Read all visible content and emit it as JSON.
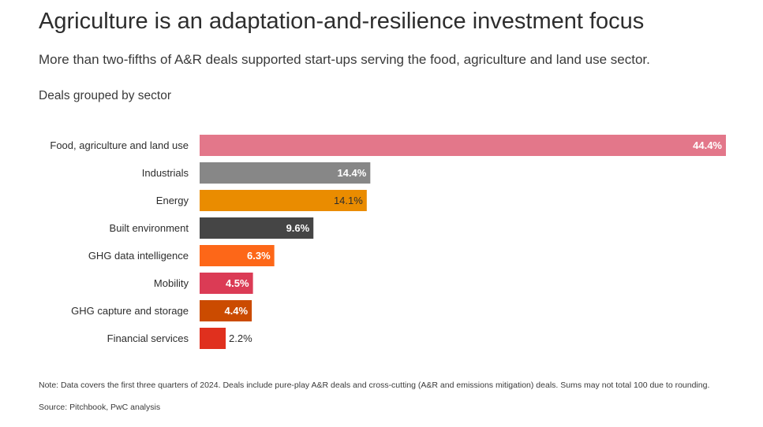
{
  "title": "Agriculture is an adaptation-and-resilience investment focus",
  "subtitle": "More than two-fifths of A&R deals supported start-ups serving the food, agriculture and land use sector.",
  "chart_label": "Deals grouped by sector",
  "note": "Note: Data covers the first three quarters of 2024. Deals include pure-play A&R deals and cross-cutting (A&R and emissions mitigation) deals. Sums may not total 100 due to rounding.",
  "source": "Source: Pitchbook, PwC analysis",
  "chart_data": {
    "type": "bar",
    "orientation": "horizontal",
    "categories": [
      "Food, agriculture and land use",
      "Industrials",
      "Energy",
      "Built environment",
      "GHG data intelligence",
      "Mobility",
      "GHG capture and storage",
      "Financial services"
    ],
    "values": [
      44.4,
      14.4,
      14.1,
      9.6,
      6.3,
      4.5,
      4.4,
      2.2
    ],
    "value_labels": [
      "44.4%",
      "14.4%",
      "14.1%",
      "9.6%",
      "6.3%",
      "4.5%",
      "4.4%",
      "2.2%"
    ],
    "colors": [
      "#e3778a",
      "#878787",
      "#ea8c00",
      "#454545",
      "#fd6718",
      "#db3b55",
      "#cb4b00",
      "#e0301e"
    ],
    "label_colors": [
      "#ffffff",
      "#ffffff",
      "#2d2d2d",
      "#ffffff",
      "#ffffff",
      "#ffffff",
      "#ffffff",
      "#2d2d2d"
    ],
    "label_weights": [
      "bold",
      "bold",
      "normal",
      "bold",
      "bold",
      "bold",
      "bold",
      "normal"
    ],
    "label_inside": [
      true,
      true,
      true,
      true,
      true,
      true,
      true,
      false
    ],
    "xlim": [
      0,
      44.4
    ],
    "grid": false,
    "legend": "none",
    "unit": "%"
  }
}
